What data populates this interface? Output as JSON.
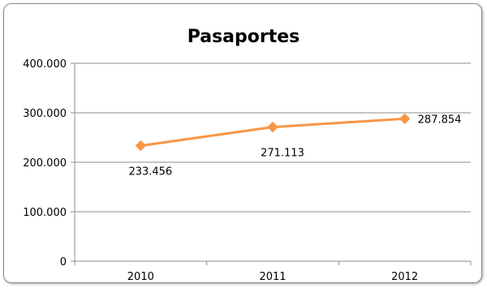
{
  "chart_data": {
    "type": "line",
    "title": "Pasaportes",
    "xlabel": "",
    "ylabel": "",
    "categories": [
      "2010",
      "2011",
      "2012"
    ],
    "series": [
      {
        "values": [
          233456,
          271113,
          287854
        ],
        "value_labels": [
          "233.456",
          "271.113",
          "287.854"
        ],
        "color": "#f79646"
      }
    ],
    "ylim": [
      0,
      400000
    ],
    "yticks": [
      0,
      100000,
      200000,
      300000,
      400000
    ],
    "ytick_labels": [
      "0",
      "100.000",
      "200.000",
      "300.000",
      "400.000"
    ],
    "grid": true,
    "legend": "none"
  }
}
